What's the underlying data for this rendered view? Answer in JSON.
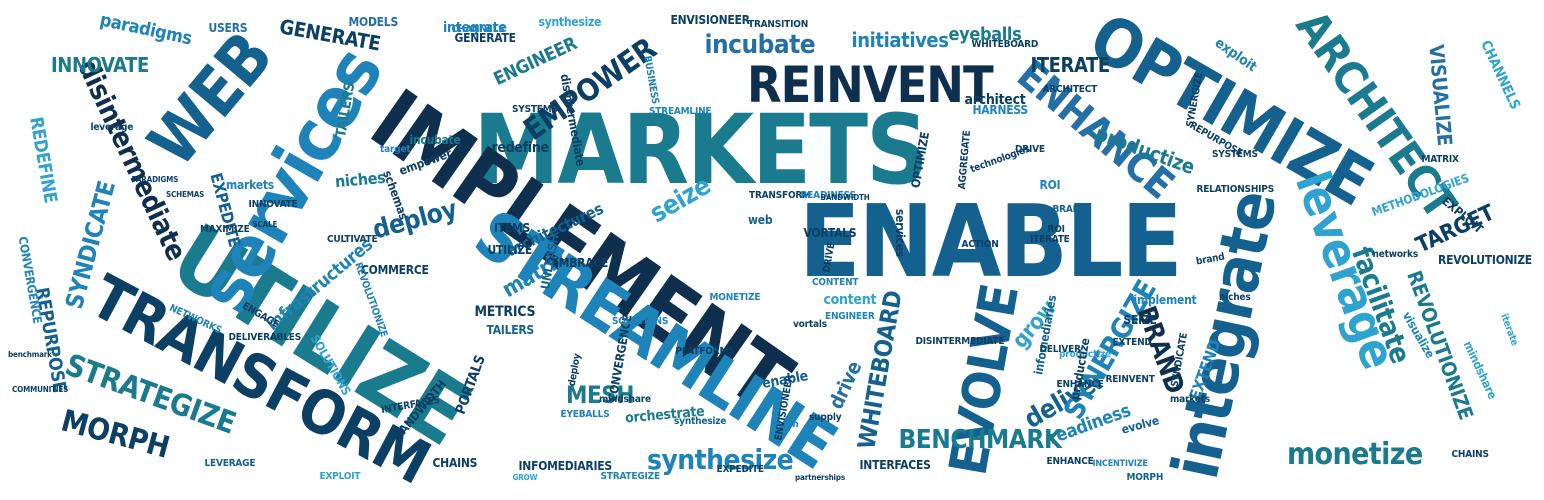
{
  "colors": {
    "background": "#ffffff",
    "darkest": "#0b3f63",
    "deep_blue": "#14618f",
    "mid_blue": "#1d83b8",
    "light_blue": "#2fa3d0",
    "teal": "#1a7a8e",
    "light_teal": "#3bb4c9"
  },
  "words": [
    "MARKETS",
    "ENABLE",
    "IMPLEMENT",
    "UTILIZE",
    "STREAMLINE",
    "TRANSFORM",
    "services",
    "WEB",
    "OPTIMIZE",
    "integrate",
    "REINVENT",
    "ENHANCE",
    "ARCHITECT",
    "EVOLVE",
    "leverage",
    "disintermediate",
    "SYNDICATE",
    "facilitate",
    "EMPOWER",
    "incubate",
    "initiatives",
    "eyeballs",
    "GENERATE",
    "INNOVATE",
    "paradigms",
    "USERS",
    "MODELS",
    "integrate",
    "synthesize",
    "ENVISIONEER",
    "ENGINEER",
    "ITERATE",
    "exploit",
    "VISUALIZE",
    "CHANNELS",
    "REDEFINE",
    "STRATEGIZE",
    "MORPH",
    "REPURPOSE",
    "CONVERGENCE",
    "monetize",
    "readiness",
    "deliver",
    "SYNERGIZE",
    "BRAND",
    "EXTEND",
    "grow",
    "BENCHMARK",
    "WHITEBOARD",
    "synthesize",
    "MESH",
    "orchestrate",
    "TARGET",
    "REVOLUTIONIZE",
    "mindshare",
    "deploy",
    "seize",
    "matrix",
    "architectures",
    "productize",
    "infrastructures",
    "EXPEDITE",
    "niches",
    "markets",
    "schemas",
    "content",
    "drive",
    "enable",
    "PORTALS",
    "BANDWIDTH",
    "SOLUTIONS",
    "NETWORKS",
    "INTERFACES",
    "INFOMEDIARIES",
    "CHAINS",
    "LEVERAGE",
    "EXPLOIT",
    "STRATEGIZE",
    "GROW",
    "partnerships",
    "ENHANCE",
    "INCENTIVIZE",
    "MORPH",
    "evolve",
    "REINVENT",
    "SYNDICATE",
    "implement",
    "productize",
    "METHODOLOGIES",
    "RELATIONSHIPS",
    "VORTALS",
    "web",
    "services",
    "MAXIMIZE",
    "TRANSFORM",
    "READINESS",
    "BANDWIDTH",
    "ROI",
    "AGGREGATE",
    "HARNESS",
    "architect",
    "SYNERGIZE",
    "technologies",
    "OPTIMIZE",
    "COMMERCE",
    "REVOLUTIONIZE",
    "ITEMS",
    "UTILIZE",
    "EMBRACE",
    "UNLEASH",
    "METRICS",
    "TAILERS",
    "benchmark",
    "COMMUNITIES",
    "INTERFACES",
    "SYSTEMS",
    "redefine",
    "target",
    "incubate",
    "TAILERS",
    "STREAMLINE",
    "empower",
    "PARADIGMS",
    "SCHEMAS",
    "CULTIVATE",
    "INNOVATE",
    "SCALE",
    "ITERATE",
    "brand",
    "EXPLOIT",
    "MONETIZE",
    "DRIVE",
    "CONTENT",
    "BUSINESS",
    "disintermediate",
    "EYEBALLS",
    "deploy",
    "supply",
    "mesh",
    "CONVERGENCE",
    "DELIVERABLES",
    "SOLUTIONS",
    "PLATFORMS",
    "ENGINEER",
    "DISINTERMEDIATE",
    "ENVISIONEER",
    "mindshare",
    "ENGAGE",
    "infomediaries",
    "SEIZE",
    "productize",
    "DELIVER",
    "EXTEND",
    "vortals",
    "TRANSITION",
    "GENERATE",
    "CHANNELS",
    "WHITEBOARD",
    "ACTION",
    "ROI",
    "REVOLUTIONIZE",
    "visualize",
    "SYSTEMS",
    "REPURPOSE",
    "ENHANCE",
    "ARCHITECT",
    "DRIVE",
    "BRAND",
    "markets",
    "niches",
    "CHAINS",
    "EXPEDITE",
    "synthesize",
    "MATRIX",
    "networks",
    "iterate",
    "leverage"
  ]
}
